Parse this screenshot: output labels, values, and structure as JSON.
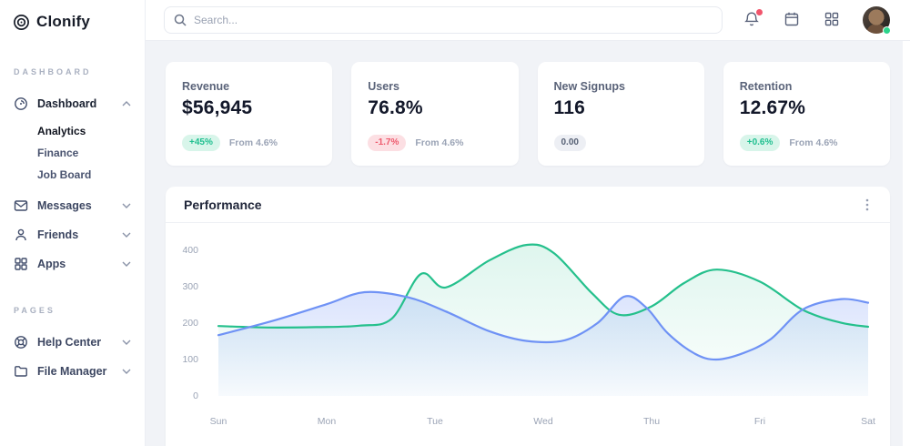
{
  "brand": {
    "name": "Clonify"
  },
  "topbar": {
    "search_placeholder": "Search...",
    "icons": [
      "bell-icon",
      "calendar-icon",
      "apps-grid-icon",
      "avatar"
    ]
  },
  "sidebar": {
    "sections": [
      {
        "label": "DASHBOARD",
        "items": [
          {
            "label": "Dashboard",
            "icon": "dashboard-icon",
            "expanded": true,
            "children": [
              "Analytics",
              "Finance",
              "Job Board"
            ],
            "active_child": "Analytics"
          },
          {
            "label": "Messages",
            "icon": "messages-icon",
            "expanded": false
          },
          {
            "label": "Friends",
            "icon": "friends-icon",
            "expanded": false
          },
          {
            "label": "Apps",
            "icon": "apps-icon",
            "expanded": false
          }
        ]
      },
      {
        "label": "PAGES",
        "items": [
          {
            "label": "Help Center",
            "icon": "help-center-icon",
            "expanded": false
          },
          {
            "label": "File Manager",
            "icon": "file-manager-icon",
            "expanded": false
          }
        ]
      }
    ]
  },
  "stats": [
    {
      "title": "Revenue",
      "value": "$56,945",
      "badge": "+45%",
      "badge_type": "positive",
      "note": "From 4.6%"
    },
    {
      "title": "Users",
      "value": "76.8%",
      "badge": "-1.7%",
      "badge_type": "negative",
      "note": "From 4.6%"
    },
    {
      "title": "New Signups",
      "value": "116",
      "badge": "0.00",
      "badge_type": "neutral",
      "note": ""
    },
    {
      "title": "Retention",
      "value": "12.67%",
      "badge": "+0.6%",
      "badge_type": "positive",
      "note": "From 4.6%"
    }
  ],
  "performance": {
    "title": "Performance"
  },
  "chart_data": {
    "type": "area",
    "title": "Performance",
    "x_labels": [
      "Sun",
      "Mon",
      "Tue",
      "Wed",
      "Thu",
      "Fri",
      "Sat"
    ],
    "y_ticks": [
      0,
      100,
      200,
      300,
      400
    ],
    "ylim": [
      0,
      440
    ],
    "grid": false,
    "legend": "none",
    "series": [
      {
        "name": "series-green",
        "color": "#25c08c",
        "fill_top": "rgba(37,192,140,0.15)",
        "fill_bottom": "rgba(37,192,140,0.01)",
        "points": [
          [
            0,
            192
          ],
          [
            0.45,
            188
          ],
          [
            0.9,
            189
          ],
          [
            1.3,
            193
          ],
          [
            1.6,
            212
          ],
          [
            1.87,
            335
          ],
          [
            2.1,
            298
          ],
          [
            2.5,
            372
          ],
          [
            2.85,
            415
          ],
          [
            3.1,
            392
          ],
          [
            3.45,
            282
          ],
          [
            3.7,
            223
          ],
          [
            4.0,
            246
          ],
          [
            4.3,
            310
          ],
          [
            4.6,
            347
          ],
          [
            5.0,
            314
          ],
          [
            5.4,
            236
          ],
          [
            5.75,
            201
          ],
          [
            6,
            190
          ]
        ]
      },
      {
        "name": "series-blue",
        "color": "#6f92f5",
        "fill_top": "rgba(111,146,245,0.35)",
        "fill_bottom": "rgba(111,146,245,0.04)",
        "points": [
          [
            0,
            167
          ],
          [
            0.5,
            206
          ],
          [
            1.0,
            252
          ],
          [
            1.35,
            285
          ],
          [
            1.75,
            271
          ],
          [
            2.1,
            232
          ],
          [
            2.5,
            178
          ],
          [
            2.85,
            151
          ],
          [
            3.2,
            153
          ],
          [
            3.5,
            200
          ],
          [
            3.75,
            273
          ],
          [
            3.95,
            243
          ],
          [
            4.15,
            172
          ],
          [
            4.4,
            116
          ],
          [
            4.6,
            100
          ],
          [
            4.85,
            118
          ],
          [
            5.1,
            156
          ],
          [
            5.4,
            238
          ],
          [
            5.75,
            266
          ],
          [
            6,
            256
          ]
        ]
      }
    ]
  },
  "colors": {
    "background": "#f1f3f7",
    "surface": "#ffffff",
    "positive": "#1fbf8f",
    "negative": "#ee5a6d",
    "notification": "#f1556c",
    "presence": "#2bd48b"
  }
}
